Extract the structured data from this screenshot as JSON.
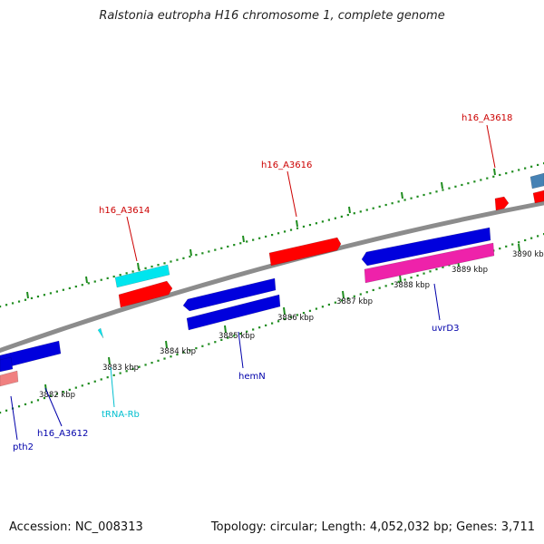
{
  "title": "Ralstonia eutropha H16 chromosome 1, complete genome",
  "footer": {
    "accession": "Accession: NC_008313",
    "summary": "Topology: circular; Length: 4,052,032 bp; Genes: 3,711"
  },
  "colors": {
    "backbone": "#8c8c8c",
    "dots_top": "#1e8c1e",
    "dots_bottom": "#1e8c1e",
    "cds_plus": "#ff0000",
    "cds_minus": "#0000dd",
    "trna": "#00e5ee",
    "pink": "#ee22aa",
    "salmon": "#f08080",
    "steelblue": "#4682b4",
    "label_red": "#cc0000",
    "label_blue": "#0000aa",
    "label_cyan": "#00bfcf"
  },
  "ticks": [
    {
      "label": "3882 kbp"
    },
    {
      "label": "3883 kbp"
    },
    {
      "label": "3884 kbp"
    },
    {
      "label": "3885 kbp"
    },
    {
      "label": "3886 kbp"
    },
    {
      "label": "3887 kbp"
    },
    {
      "label": "3888 kbp"
    },
    {
      "label": "3889 kbp"
    },
    {
      "label": "3890 kbp"
    }
  ],
  "gene_labels": [
    {
      "id": "h16_A3614",
      "text": "h16_A3614",
      "color": "label_red"
    },
    {
      "id": "h16_A3616",
      "text": "h16_A3616",
      "color": "label_red"
    },
    {
      "id": "h16_A3618",
      "text": "h16_A3618",
      "color": "label_red"
    },
    {
      "id": "pth2",
      "text": "pth2",
      "color": "label_blue"
    },
    {
      "id": "h16_A3612",
      "text": "h16_A3612",
      "color": "label_blue"
    },
    {
      "id": "tRNA-Rb",
      "text": "tRNA-Rb",
      "color": "label_cyan"
    },
    {
      "id": "hemN",
      "text": "hemN",
      "color": "label_blue"
    },
    {
      "id": "uvrD3",
      "text": "uvrD3",
      "color": "label_blue"
    }
  ]
}
